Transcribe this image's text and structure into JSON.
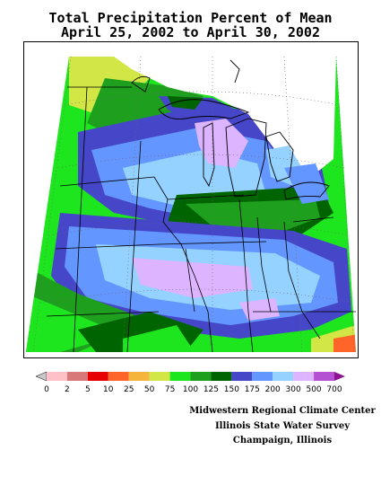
{
  "title_line1": "Total Precipitation Percent of Mean",
  "title_line2": "April 25, 2002 to April 30, 2002",
  "legend": {
    "labels": [
      "0",
      "2",
      "5",
      "10",
      "25",
      "50",
      "75",
      "100",
      "125",
      "150",
      "175",
      "200",
      "300",
      "500",
      "700"
    ],
    "colors": [
      "#c8c8c8",
      "#ffc0c8",
      "#d97878",
      "#e60000",
      "#ff6428",
      "#f5b43c",
      "#d2e646",
      "#1ee61e",
      "#1ea01e",
      "#006400",
      "#4646c8",
      "#6496ff",
      "#96d2ff",
      "#dcb4ff",
      "#b450d2",
      "#8c1490"
    ]
  },
  "credits": [
    "Midwestern Regional Climate Center",
    "Illinois State Water Survey",
    "Champaign, Illinois"
  ],
  "palette": {
    "ocean": "#ffffff",
    "c0": "#c8c8c8",
    "c2": "#ffc0c8",
    "c5": "#d97878",
    "c10": "#e60000",
    "c25": "#ff6428",
    "c50": "#f5b43c",
    "c75": "#d2e646",
    "c100": "#1ee61e",
    "c125": "#1ea01e",
    "c150": "#006400",
    "c175": "#4646c8",
    "c200": "#6496ff",
    "c300": "#96d2ff",
    "c500": "#dcb4ff",
    "c700": "#b450d2"
  }
}
